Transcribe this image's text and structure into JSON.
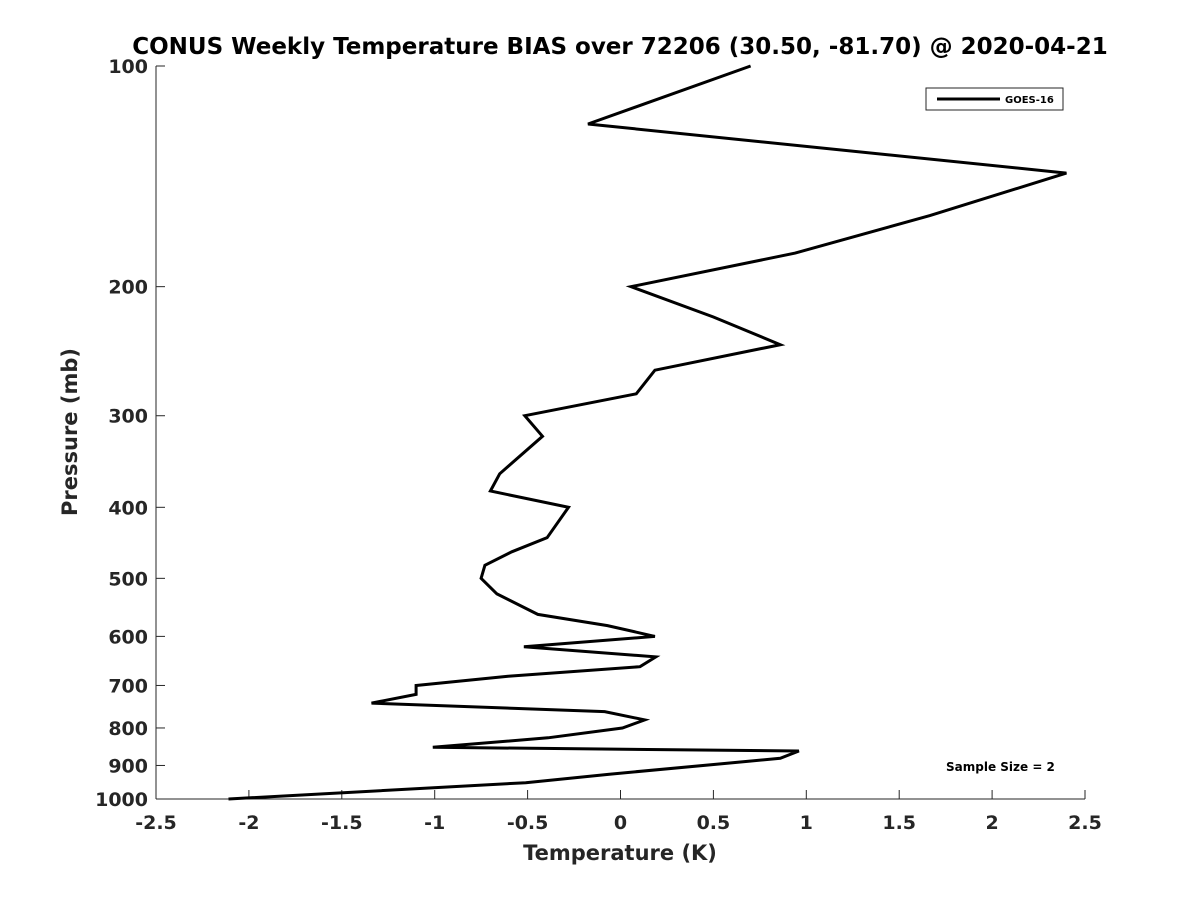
{
  "chart_data": {
    "type": "line",
    "title": "CONUS Weekly Temperature BIAS over 72206 (30.50, -81.70) @ 2020-04-21",
    "xlabel": "Temperature (K)",
    "ylabel": "Pressure (mb)",
    "xlim": [
      -2.5,
      2.5
    ],
    "ylim": [
      100,
      1000
    ],
    "yscale": "log",
    "y_reversed": true,
    "xticks": [
      "-2.5",
      "-2",
      "-1.5",
      "-1",
      "-0.5",
      "0",
      "0.5",
      "1",
      "1.5",
      "2",
      "2.5"
    ],
    "xtick_values": [
      -2.5,
      -2,
      -1.5,
      -1,
      -0.5,
      0,
      0.5,
      1,
      1.5,
      2,
      2.5
    ],
    "yticks": [
      "100",
      "200",
      "300",
      "400",
      "500",
      "600",
      "700",
      "800",
      "900",
      "1000"
    ],
    "ytick_values": [
      100,
      200,
      300,
      400,
      500,
      600,
      700,
      800,
      900,
      1000
    ],
    "grid": false,
    "legend_position": "top-right",
    "annotation": "Sample Size = 2",
    "series": [
      {
        "name": "GOES-16",
        "color": "#000000",
        "x": [
          0.7,
          -0.175,
          2.4,
          1.665,
          0.94,
          0.057,
          0.5,
          0.86,
          0.185,
          0.085,
          -0.515,
          -0.42,
          -0.65,
          -0.7,
          -0.28,
          -0.395,
          -0.585,
          -0.73,
          -0.75,
          -0.665,
          -0.445,
          -0.07,
          0.185,
          -0.52,
          0.19,
          0.105,
          -0.605,
          -1.1,
          -1.1,
          -1.34,
          -0.085,
          0.13,
          0.01,
          -0.39,
          -1.01,
          0.96,
          0.86,
          -0.06,
          -0.51,
          -2.11
        ],
        "y": [
          100,
          120,
          140,
          160,
          180,
          200,
          220,
          240,
          260,
          280,
          300,
          320,
          360,
          380,
          400,
          440,
          460,
          480,
          500,
          525,
          560,
          580,
          600,
          620,
          640,
          660,
          680,
          700,
          720,
          740,
          760,
          780,
          800,
          825,
          850,
          860,
          880,
          925,
          950,
          1000
        ]
      }
    ]
  }
}
